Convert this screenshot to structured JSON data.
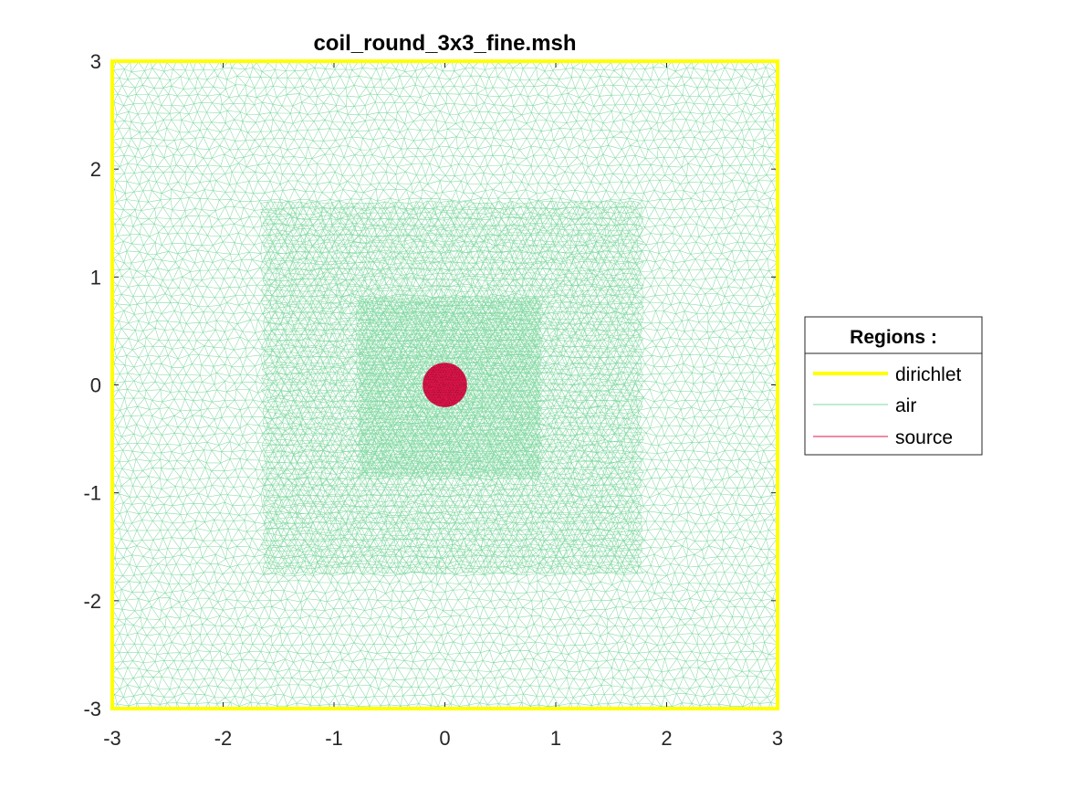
{
  "chart_data": {
    "type": "mesh",
    "title": "coil_round_3x3_fine.msh",
    "xlim": [
      -3,
      3
    ],
    "ylim": [
      -3,
      3
    ],
    "x_ticks": [
      -3,
      -2,
      -1,
      0,
      1,
      2,
      3
    ],
    "y_ticks": [
      -3,
      -2,
      -1,
      0,
      1,
      2,
      3
    ],
    "x_tick_labels": [
      "-3",
      "-2",
      "-1",
      "0",
      "1",
      "2",
      "3"
    ],
    "y_tick_labels": [
      "-3",
      "-2",
      "-1",
      "0",
      "1",
      "2",
      "3"
    ],
    "grid": false,
    "legend": {
      "title": "Regions :",
      "placement": "right",
      "entries": [
        {
          "label": "dirichlet",
          "color": "#ffff00"
        },
        {
          "label": "air",
          "color": "#7fd8a0"
        },
        {
          "label": "source",
          "color": "#e0164a"
        }
      ]
    },
    "regions": [
      {
        "name": "dirichlet",
        "kind": "boundary",
        "shape": "square",
        "x_range": [
          -3,
          3
        ],
        "y_range": [
          -3,
          3
        ],
        "color": "#ffff00"
      },
      {
        "name": "air",
        "kind": "triangular-mesh",
        "x_range": [
          -3,
          3
        ],
        "y_range": [
          -3,
          3
        ],
        "color": "#7fd8a0"
      },
      {
        "name": "source",
        "kind": "disk",
        "center": [
          0,
          0
        ],
        "radius": 0.2,
        "color": "#e0164a"
      }
    ]
  }
}
